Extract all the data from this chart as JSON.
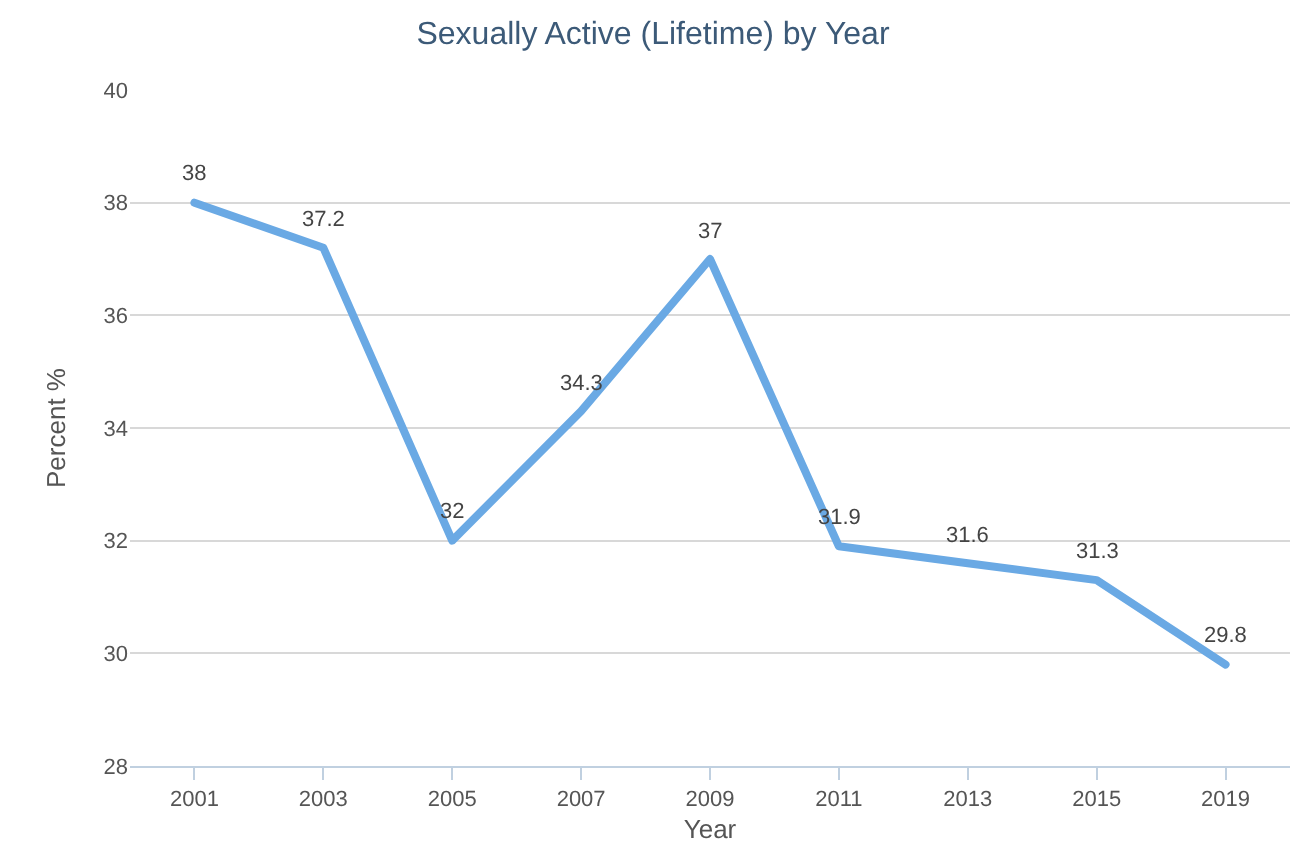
{
  "chart_data": {
    "type": "line",
    "title": "Sexually Active (Lifetime) by Year",
    "xlabel": "Year",
    "ylabel": "Percent %",
    "categories": [
      "2001",
      "2003",
      "2005",
      "2007",
      "2009",
      "2011",
      "2013",
      "2015",
      "2019"
    ],
    "series": [
      {
        "color": "#6aa9e4",
        "values": [
          38,
          37.2,
          32,
          34.3,
          37,
          31.9,
          31.6,
          31.3,
          29.8
        ]
      }
    ],
    "ylim": [
      28,
      40
    ],
    "yticks": [
      28,
      30,
      32,
      34,
      36,
      38,
      40
    ],
    "grid": "y",
    "data_labels": true,
    "marker": "none",
    "line_style": "solid",
    "legend": false
  }
}
